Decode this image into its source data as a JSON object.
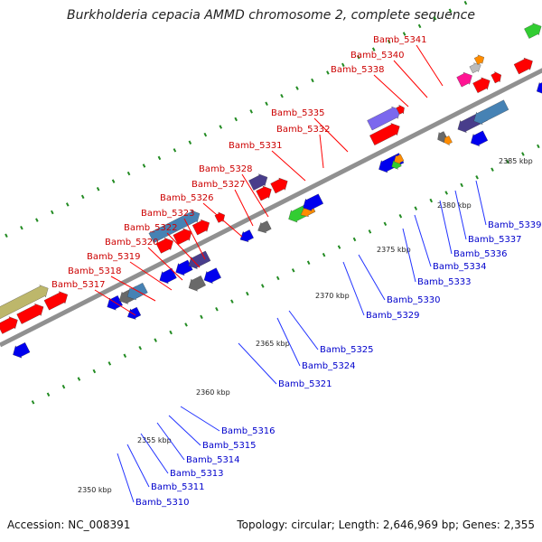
{
  "title": "Burkholderia cepacia AMMD chromosome 2, complete sequence",
  "footer": {
    "accession": "Accession: NC_008391",
    "stats": "Topology: circular; Length: 2,646,969 bp; Genes: 2,355"
  },
  "colors": {
    "backbone": "#909090",
    "label_red": "#cc0000",
    "label_blue": "#0000cc",
    "leader_red": "#ff0000",
    "leader_blue": "#2233ff",
    "tick": "#228b22"
  },
  "kbp_marks": [
    "2350 kbp",
    "2355 kbp",
    "2360 kbp",
    "2365 kbp",
    "2370 kbp",
    "2375 kbp",
    "2380 kbp",
    "2385 kbp"
  ],
  "top_labels": [
    "Bamb_5341",
    "Bamb_5340",
    "Bamb_5338",
    "Bamb_5335",
    "Bamb_5332",
    "Bamb_5331",
    "Bamb_5328",
    "Bamb_5327",
    "Bamb_5326",
    "Bamb_5323",
    "Bamb_5322",
    "Bamb_5320",
    "Bamb_5319",
    "Bamb_5318",
    "Bamb_5317"
  ],
  "bottom_labels": [
    "Bamb_5339",
    "Bamb_5337",
    "Bamb_5336",
    "Bamb_5334",
    "Bamb_5333",
    "Bamb_5330",
    "Bamb_5329",
    "Bamb_5325",
    "Bamb_5324",
    "Bamb_5321",
    "Bamb_5316",
    "Bamb_5315",
    "Bamb_5314",
    "Bamb_5313",
    "Bamb_5311",
    "Bamb_5310"
  ],
  "gene_colors": {
    "red": "#ff0000",
    "blue": "#0000ee",
    "steelblue": "#4682b4",
    "darkslate": "#483d8b",
    "slateblue": "#7b68ee",
    "green": "#32cd32",
    "orange": "#ff8c00",
    "khaki": "#bdb76b",
    "gray": "#696969",
    "lightgray": "#bbbbbb",
    "magenta": "#ff1493"
  }
}
